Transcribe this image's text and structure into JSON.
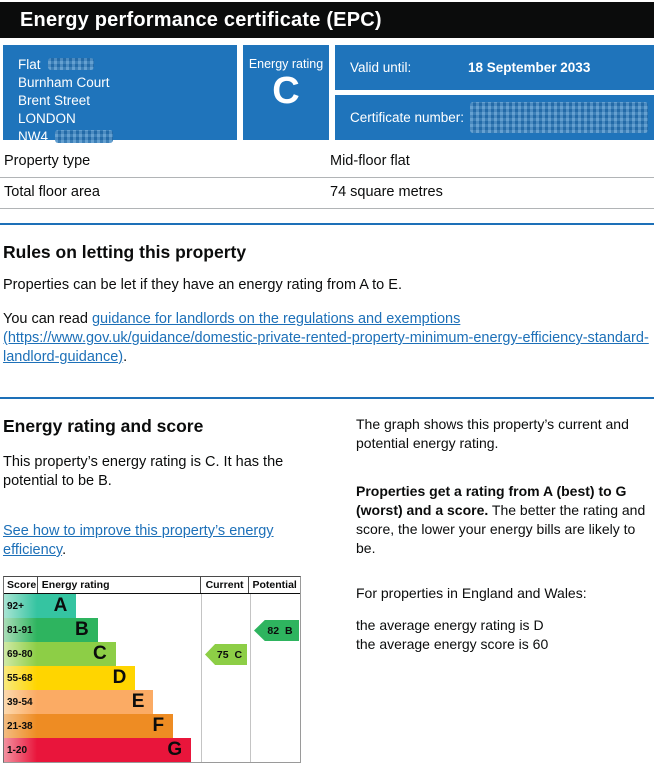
{
  "colors": {
    "govuk_blue": "#1f74bb",
    "link": "#1d70b8",
    "masthead_bg": "#0b0c0c"
  },
  "header": {
    "title": "Energy performance certificate (EPC)"
  },
  "summary": {
    "address_lines": [
      "Flat",
      "Burnham Court",
      "Brent Street",
      "LONDON",
      "NW4"
    ],
    "energy_rating_label": "Energy rating",
    "energy_rating_value": "C",
    "valid_until_label": "Valid until:",
    "valid_until_value": "18 September 2033",
    "certificate_number_label": "Certificate number:"
  },
  "property_details": {
    "rows": [
      {
        "label": "Property type",
        "value": "Mid-floor flat"
      },
      {
        "label": "Total floor area",
        "value": "74 square metres"
      }
    ]
  },
  "rules_section": {
    "heading": "Rules on letting this property",
    "paragraph1": "Properties can be let if they have an energy rating from A to E.",
    "paragraph2_prefix": "You can read ",
    "link_text": "guidance for landlords on the regulations and exemptions (https://www.gov.uk/guidance/domestic-private-rented-property-minimum-energy-efficiency-standard-landlord-guidance)",
    "paragraph2_suffix": "."
  },
  "rating_section": {
    "heading": "Energy rating and score",
    "paragraph1": "This property’s energy rating is C. It has the potential to be B.",
    "improve_link": "See how to improve this property’s energy efficiency",
    "improve_suffix": ".",
    "right_col": {
      "p1": "The graph shows this property’s current and potential energy rating.",
      "p2_bold": "Properties get a rating from A (best) to G (worst) and a score.",
      "p2_rest": " The better the rating and score, the lower your energy bills are likely to be.",
      "p3": "For properties in England and Wales:",
      "p4_line1": "the average energy rating is D",
      "p4_line2": "the average energy score is 60"
    }
  },
  "chart_data": {
    "type": "epc-rating-bands",
    "headers": [
      "Score",
      "Energy rating",
      "Current",
      "Potential"
    ],
    "bands": [
      {
        "score": "92+",
        "letter": "A",
        "color": "#35c4a1",
        "tint": "#a8e4d3",
        "width_pct": 24
      },
      {
        "score": "81-91",
        "letter": "B",
        "color": "#2eb45f",
        "tint": "#a9ddb8",
        "width_pct": 37
      },
      {
        "score": "69-80",
        "letter": "C",
        "color": "#8dce46",
        "tint": "#cfe9a4",
        "width_pct": 48
      },
      {
        "score": "55-68",
        "letter": "D",
        "color": "#ffd500",
        "tint": "#f9e97c",
        "width_pct": 60
      },
      {
        "score": "39-54",
        "letter": "E",
        "color": "#fbab64",
        "tint": "#fcd9ae",
        "width_pct": 71
      },
      {
        "score": "21-38",
        "letter": "F",
        "color": "#ee8c23",
        "tint": "#f3bc80",
        "width_pct": 83
      },
      {
        "score": "1-20",
        "letter": "G",
        "color": "#e9153b",
        "tint": "#f2909f",
        "width_pct": 94
      }
    ],
    "current": {
      "score": "75",
      "band": "C",
      "row_index": 2,
      "color": "#8dce46"
    },
    "potential": {
      "score": "82",
      "band": "B",
      "row_index": 1,
      "color": "#2eb45f"
    }
  }
}
